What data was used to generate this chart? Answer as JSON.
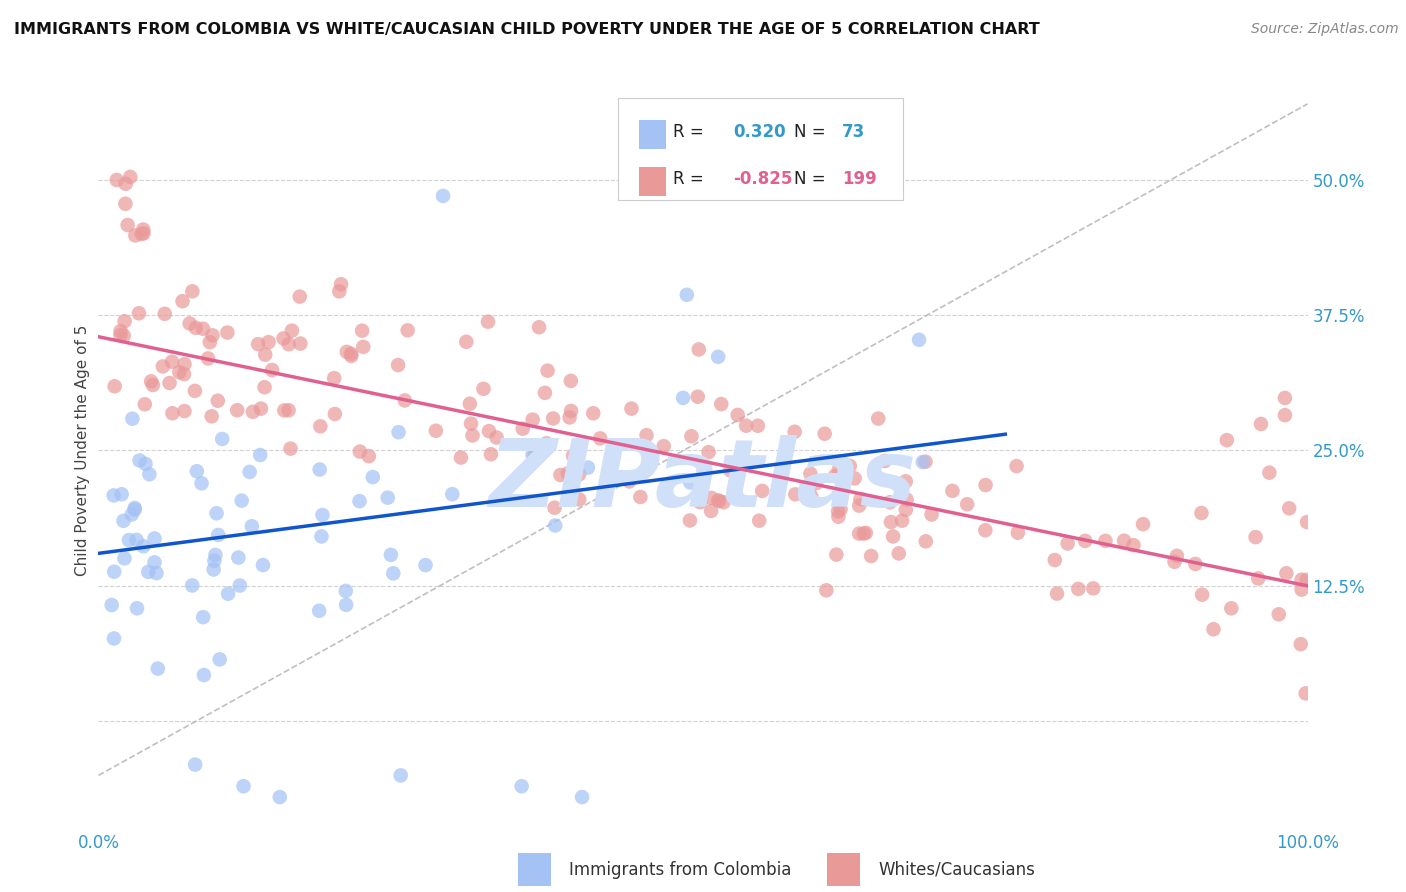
{
  "title": "IMMIGRANTS FROM COLOMBIA VS WHITE/CAUCASIAN CHILD POVERTY UNDER THE AGE OF 5 CORRELATION CHART",
  "source": "Source: ZipAtlas.com",
  "ylabel": "Child Poverty Under the Age of 5",
  "xlim": [
    0.0,
    1.0
  ],
  "ylim": [
    -0.1,
    0.6
  ],
  "yticks": [
    0.0,
    0.125,
    0.25,
    0.375,
    0.5
  ],
  "ytick_labels": [
    "",
    "12.5%",
    "25.0%",
    "37.5%",
    "50.0%"
  ],
  "blue_R": 0.32,
  "blue_N": 73,
  "pink_R": -0.825,
  "pink_N": 199,
  "blue_color": "#a4c2f4",
  "pink_color": "#ea9999",
  "blue_line_color": "#1155cc",
  "pink_line_color": "#e06090",
  "trend_line_color": "#b0b0b0",
  "background_color": "#ffffff",
  "grid_color": "#cccccc",
  "watermark_color": "#d0e0f8",
  "legend_label_blue": "Immigrants from Colombia",
  "legend_label_pink": "Whites/Caucasians",
  "blue_line_x0": 0.0,
  "blue_line_x1": 0.75,
  "blue_line_y0": 0.155,
  "blue_line_y1": 0.265,
  "pink_line_x0": 0.0,
  "pink_line_x1": 1.0,
  "pink_line_y0": 0.355,
  "pink_line_y1": 0.125,
  "trend_x0": 0.0,
  "trend_x1": 1.0,
  "trend_y0": -0.05,
  "trend_y1": 0.57
}
